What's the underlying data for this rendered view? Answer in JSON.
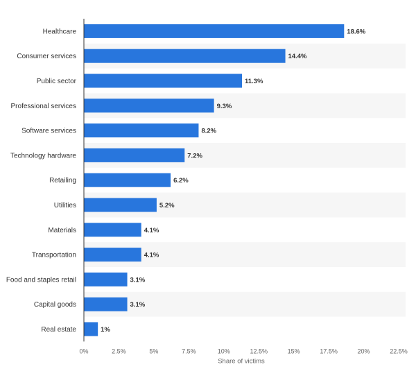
{
  "chart_data": {
    "type": "bar",
    "orientation": "horizontal",
    "categories": [
      "Healthcare",
      "Consumer services",
      "Public sector",
      "Professional services",
      "Software services",
      "Technology hardware",
      "Retailing",
      "Utilities",
      "Materials",
      "Transportation",
      "Food and staples retail",
      "Capital goods",
      "Real estate"
    ],
    "values": [
      18.6,
      14.4,
      11.3,
      9.3,
      8.2,
      7.2,
      6.2,
      5.2,
      4.1,
      4.1,
      3.1,
      3.1,
      1
    ],
    "value_labels": [
      "18.6%",
      "14.4%",
      "11.3%",
      "9.3%",
      "8.2%",
      "7.2%",
      "6.2%",
      "5.2%",
      "4.1%",
      "4.1%",
      "3.1%",
      "3.1%",
      "1%"
    ],
    "xlim": [
      0,
      22.5
    ],
    "xticks": [
      "0%",
      "2.5%",
      "5%",
      "7.5%",
      "10%",
      "12.5%",
      "15%",
      "17.5%",
      "20%",
      "22.5%"
    ],
    "xlabel": "Share of victims",
    "title": "",
    "ylabel": "",
    "grid": "alternating row bands",
    "colors": {
      "bar": "#2876dd",
      "band": "#f6f6f6",
      "axis": "#333333",
      "text": "#333333",
      "tick_text": "#666666"
    }
  }
}
